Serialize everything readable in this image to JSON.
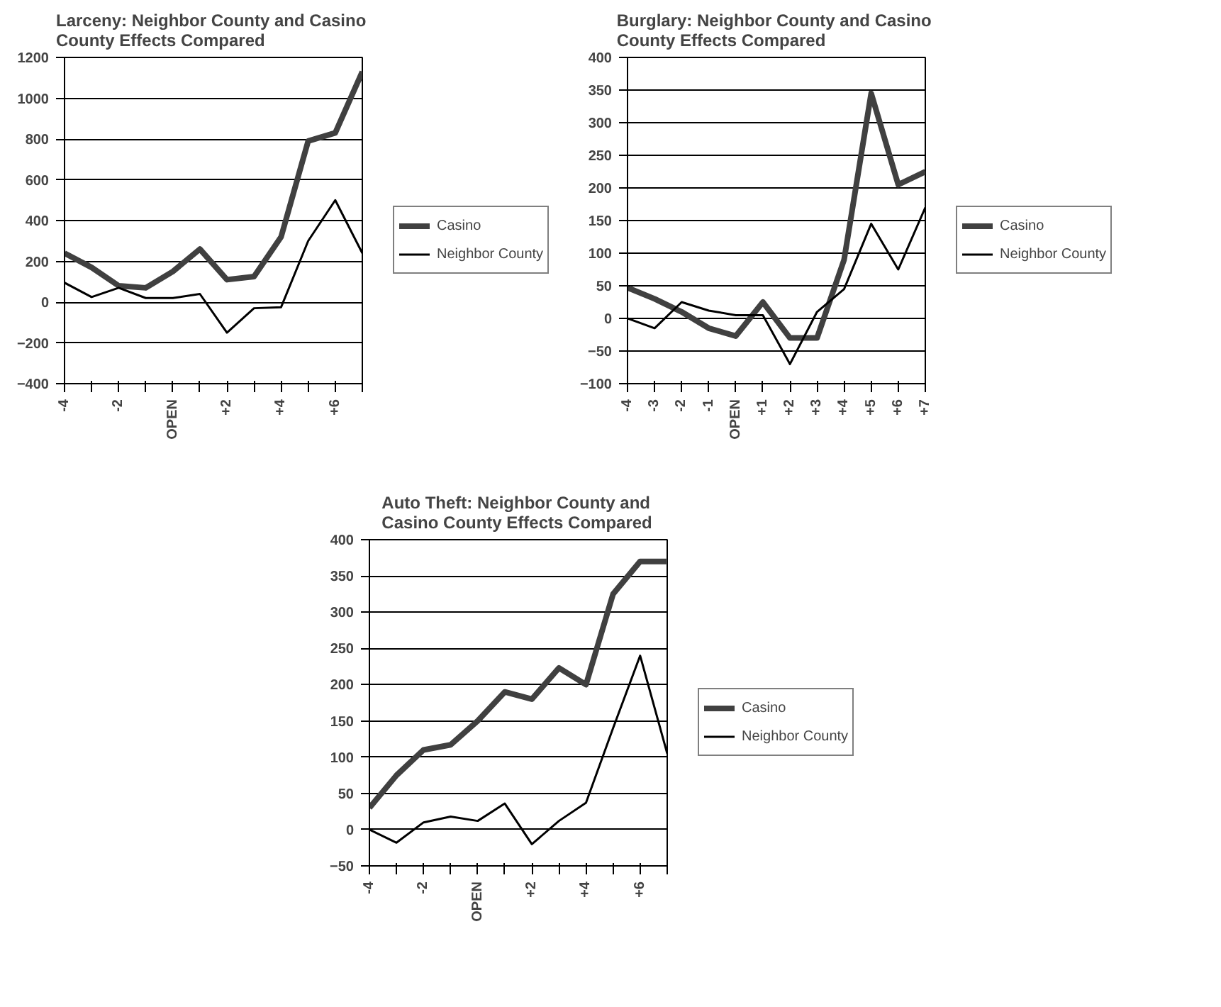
{
  "chart_data": [
    {
      "type": "line",
      "title": "Larceny:  Neighbor County and Casino\nCounty Effects Compared",
      "categories": [
        "-4",
        null,
        "-2",
        null,
        "OPEN",
        null,
        "+2",
        null,
        "+4",
        null,
        "+6",
        null
      ],
      "ylim": [
        -400,
        1200
      ],
      "yticks": [
        -400,
        -200,
        0,
        200,
        400,
        600,
        800,
        1000,
        1200
      ],
      "grid": "y",
      "legend": "right",
      "series": [
        {
          "name": "Casino",
          "color": "#404040",
          "values": [
            240,
            170,
            80,
            70,
            150,
            260,
            110,
            125,
            320,
            790,
            830,
            1130
          ]
        },
        {
          "name": "Neighbor County",
          "color": "#000000",
          "values": [
            95,
            25,
            70,
            20,
            20,
            40,
            -150,
            -30,
            -25,
            300,
            500,
            240
          ]
        }
      ]
    },
    {
      "type": "line",
      "title": "Burglary:  Neighbor County and Casino\nCounty Effects Compared",
      "categories": [
        "-4",
        "-3",
        "-2",
        "-1",
        "OPEN",
        "+1",
        "+2",
        "+3",
        "+4",
        "+5",
        "+6",
        "+7"
      ],
      "ylim": [
        -100,
        400
      ],
      "yticks": [
        -100,
        -50,
        0,
        50,
        100,
        150,
        200,
        250,
        300,
        350,
        400
      ],
      "grid": "y",
      "legend": "right",
      "series": [
        {
          "name": "Casino",
          "color": "#404040",
          "values": [
            47,
            30,
            10,
            -15,
            -27,
            25,
            -30,
            -30,
            90,
            345,
            205,
            225
          ]
        },
        {
          "name": "Neighbor County",
          "color": "#000000",
          "values": [
            0,
            -15,
            25,
            12,
            5,
            5,
            -70,
            10,
            45,
            145,
            75,
            170
          ]
        }
      ]
    },
    {
      "type": "line",
      "title": "Auto Theft:  Neighbor County and\nCasino County Effects Compared",
      "categories": [
        "-4",
        null,
        "-2",
        null,
        "OPEN",
        null,
        "+2",
        null,
        "+4",
        null,
        "+6",
        null
      ],
      "ylim": [
        -50,
        400
      ],
      "yticks": [
        -50,
        0,
        50,
        100,
        150,
        200,
        250,
        300,
        350,
        400
      ],
      "grid": "y",
      "legend": "right",
      "series": [
        {
          "name": "Casino",
          "color": "#404040",
          "values": [
            30,
            75,
            110,
            117,
            150,
            190,
            180,
            223,
            200,
            325,
            370,
            370
          ]
        },
        {
          "name": "Neighbor County",
          "color": "#000000",
          "values": [
            0,
            -18,
            10,
            18,
            12,
            36,
            -20,
            12,
            37,
            140,
            240,
            105
          ]
        }
      ]
    }
  ]
}
